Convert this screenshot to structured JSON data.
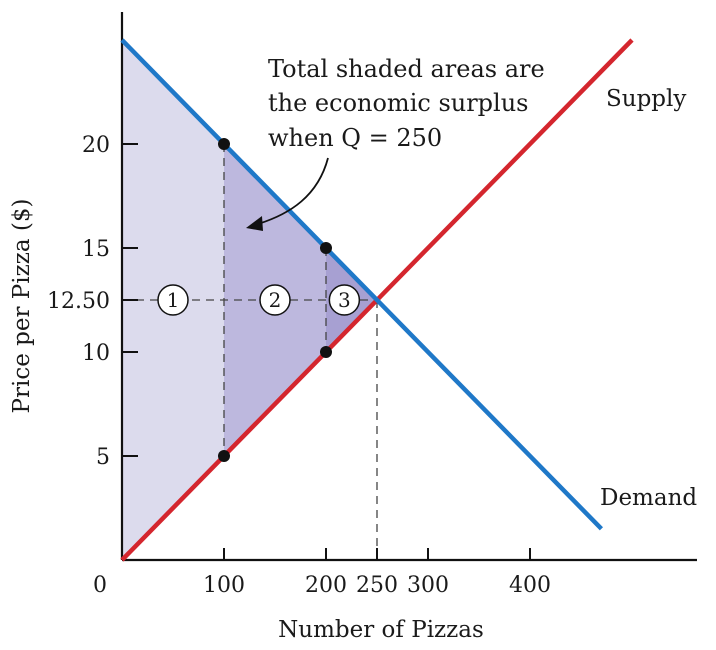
{
  "chart_data": {
    "type": "line",
    "xlabel": "Number of Pizzas",
    "ylabel": "Price per Pizza ($)",
    "origin_label": "0",
    "xticks": [
      100,
      200,
      250,
      300,
      400
    ],
    "xtick_labels": [
      "100",
      "200",
      "250",
      "300",
      "400"
    ],
    "yticks": [
      5,
      10,
      12.5,
      15,
      20
    ],
    "ytick_labels": [
      "5",
      "10",
      "12.50",
      "15",
      "20"
    ],
    "xlim": [
      0,
      560
    ],
    "ylim": [
      0,
      25.5
    ],
    "grid": false,
    "series": [
      {
        "name": "Supply",
        "color": "#d4262e",
        "x": [
          0,
          500
        ],
        "y": [
          0,
          25
        ]
      },
      {
        "name": "Demand",
        "color": "#1f78c8",
        "x": [
          0,
          470
        ],
        "y": [
          25,
          1.5
        ]
      }
    ],
    "equilibrium": {
      "x": 250,
      "y": 12.5
    },
    "points": [
      {
        "x": 100,
        "y": 20
      },
      {
        "x": 100,
        "y": 5
      },
      {
        "x": 200,
        "y": 15
      },
      {
        "x": 200,
        "y": 10
      }
    ],
    "shaded_regions": [
      {
        "label": "1",
        "x_from": 0,
        "x_to": 100,
        "color": "#dcdbed"
      },
      {
        "label": "2",
        "x_from": 100,
        "x_to": 200,
        "color": "#bdb8de"
      },
      {
        "label": "3",
        "x_from": 200,
        "x_to": 250,
        "color": "#a7a0d2"
      }
    ],
    "circle_labels_y": 12.5,
    "annotation": {
      "lines": [
        "Total shaded areas are",
        "the economic surplus",
        "when Q = 250"
      ]
    }
  }
}
